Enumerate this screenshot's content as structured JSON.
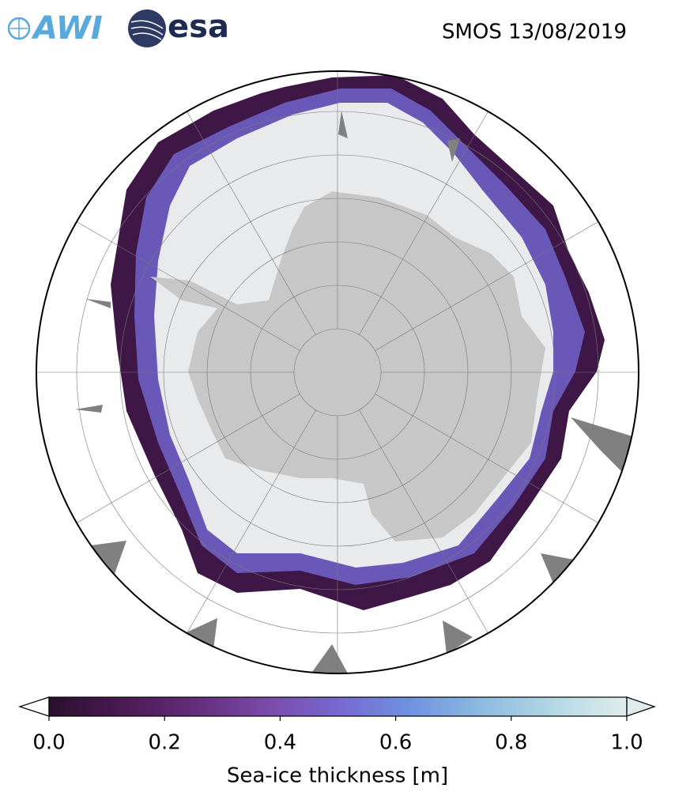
{
  "header": {
    "title": "SMOS 13/08/2019",
    "logos": [
      "AWI",
      "esa"
    ]
  },
  "colorbar": {
    "label": "Sea-ice thickness [m]",
    "lim": [
      0,
      1
    ],
    "ticks": [
      {
        "value": 0,
        "label": "0.0"
      },
      {
        "value": 0.2,
        "label": "0.2"
      },
      {
        "value": 0.4,
        "label": "0.4"
      },
      {
        "value": 0.6,
        "label": "0.6"
      },
      {
        "value": 0.8,
        "label": "0.8"
      },
      {
        "value": 1,
        "label": "1.0"
      }
    ],
    "colormap": [
      "#2a0f2e",
      "#4a1a52",
      "#632c7a",
      "#7a4aa8",
      "#7868d0",
      "#6f92e0",
      "#8cbbe0",
      "#b4d8e4",
      "#e0ecec"
    ]
  }
}
